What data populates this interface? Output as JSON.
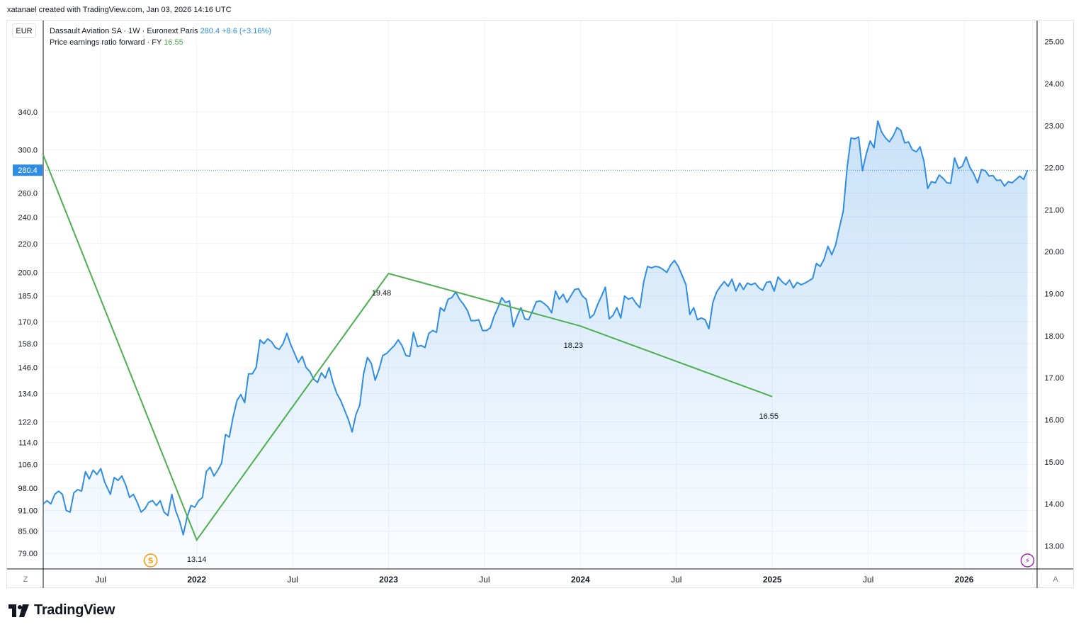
{
  "attribution": "xatanael created with TradingView.com, Jan 03, 2026 14:16 UTC",
  "currency": "EUR",
  "legend": {
    "symbol": "Dassault Aviation SA · 1W · Euronext Paris",
    "price": "280.4",
    "change": "+8.6 (+3.16%)",
    "indicator": "Price earnings ratio forward · FY",
    "indicator_value": "16.55"
  },
  "colors": {
    "price_line": "#2f8de4",
    "pe_line": "#4caf50",
    "grid": "#f0f3fa",
    "axis_text": "#131722"
  },
  "corner_left": "Z",
  "corner_right": "A",
  "logo_text": "TradingView",
  "chart_data": {
    "type": "line",
    "title": "Dassault Aviation SA · 1W · Euronext Paris",
    "xlabel": "",
    "ylabel": "",
    "x_tick_labels": [
      "Jul",
      "2022",
      "Jul",
      "2023",
      "Jul",
      "2024",
      "Jul",
      "2025",
      "Jul",
      "2026"
    ],
    "x_tick_dates": [
      2021.5,
      2022.0,
      2022.5,
      2023.0,
      2023.5,
      2024.0,
      2024.5,
      2025.0,
      2025.5,
      2026.0
    ],
    "x_range": [
      2021.2,
      2026.38
    ],
    "left_axis": {
      "scale": "log",
      "range": [
        75,
        460
      ],
      "ticks": [
        "79.00",
        "85.00",
        "91.00",
        "98.00",
        "106.0",
        "114.0",
        "122.0",
        "134.0",
        "146.0",
        "158.0",
        "170.0",
        "185.0",
        "200.0",
        "220.0",
        "240.0",
        "260.0",
        "300.0",
        "340.0"
      ],
      "last_price_label": "280.4",
      "last_price": 280.4
    },
    "right_axis": {
      "range": [
        12.45,
        25.5
      ],
      "ticks": [
        "13.00",
        "14.00",
        "15.00",
        "16.00",
        "17.00",
        "18.00",
        "19.00",
        "20.00",
        "21.00",
        "22.00",
        "23.00",
        "24.00",
        "25.00"
      ]
    },
    "series": [
      {
        "name": "Dassault Aviation SA price",
        "axis": "left",
        "type": "area",
        "points": [
          [
            2021.2,
            93
          ],
          [
            2021.22,
            94
          ],
          [
            2021.24,
            93
          ],
          [
            2021.26,
            96
          ],
          [
            2021.28,
            97
          ],
          [
            2021.3,
            96
          ],
          [
            2021.32,
            91
          ],
          [
            2021.34,
            90.5
          ],
          [
            2021.36,
            96.5
          ],
          [
            2021.38,
            97.5
          ],
          [
            2021.4,
            97
          ],
          [
            2021.42,
            103.5
          ],
          [
            2021.44,
            101
          ],
          [
            2021.46,
            104
          ],
          [
            2021.48,
            102.5
          ],
          [
            2021.5,
            104.5
          ],
          [
            2021.52,
            100
          ],
          [
            2021.55,
            96
          ],
          [
            2021.57,
            101.5
          ],
          [
            2021.59,
            100.5
          ],
          [
            2021.61,
            102
          ],
          [
            2021.63,
            99
          ],
          [
            2021.65,
            95
          ],
          [
            2021.67,
            96
          ],
          [
            2021.69,
            93.5
          ],
          [
            2021.71,
            90.5
          ],
          [
            2021.73,
            91.5
          ],
          [
            2021.75,
            93.5
          ],
          [
            2021.77,
            94
          ],
          [
            2021.79,
            92.5
          ],
          [
            2021.81,
            94
          ],
          [
            2021.83,
            90.5
          ],
          [
            2021.85,
            89.5
          ],
          [
            2021.87,
            96
          ],
          [
            2021.89,
            91
          ],
          [
            2021.91,
            88
          ],
          [
            2021.93,
            84
          ],
          [
            2021.95,
            89
          ],
          [
            2021.97,
            92.5
          ],
          [
            2021.99,
            92
          ],
          [
            2022.01,
            94
          ],
          [
            2022.03,
            95
          ],
          [
            2022.05,
            103.5
          ],
          [
            2022.07,
            105
          ],
          [
            2022.09,
            102
          ],
          [
            2022.11,
            104
          ],
          [
            2022.13,
            106.5
          ],
          [
            2022.15,
            117
          ],
          [
            2022.17,
            116
          ],
          [
            2022.19,
            124
          ],
          [
            2022.21,
            131
          ],
          [
            2022.23,
            133.5
          ],
          [
            2022.25,
            130
          ],
          [
            2022.27,
            143
          ],
          [
            2022.29,
            143
          ],
          [
            2022.31,
            146
          ],
          [
            2022.33,
            160
          ],
          [
            2022.35,
            158
          ],
          [
            2022.37,
            160.5
          ],
          [
            2022.39,
            159
          ],
          [
            2022.41,
            156
          ],
          [
            2022.43,
            155
          ],
          [
            2022.45,
            158
          ],
          [
            2022.47,
            163.5
          ],
          [
            2022.49,
            157.5
          ],
          [
            2022.51,
            153
          ],
          [
            2022.53,
            148.5
          ],
          [
            2022.55,
            151.5
          ],
          [
            2022.57,
            146
          ],
          [
            2022.59,
            144
          ],
          [
            2022.61,
            140.5
          ],
          [
            2022.63,
            139
          ],
          [
            2022.65,
            143.5
          ],
          [
            2022.67,
            141
          ],
          [
            2022.69,
            146
          ],
          [
            2022.71,
            139
          ],
          [
            2022.73,
            134
          ],
          [
            2022.75,
            131
          ],
          [
            2022.77,
            127
          ],
          [
            2022.79,
            123
          ],
          [
            2022.81,
            118
          ],
          [
            2022.83,
            125
          ],
          [
            2022.85,
            129
          ],
          [
            2022.87,
            143
          ],
          [
            2022.89,
            151
          ],
          [
            2022.91,
            148
          ],
          [
            2022.93,
            140
          ],
          [
            2022.95,
            145
          ],
          [
            2022.97,
            152
          ],
          [
            2022.99,
            153
          ],
          [
            2023.01,
            155
          ],
          [
            2023.03,
            157
          ],
          [
            2023.05,
            160
          ],
          [
            2023.07,
            157
          ],
          [
            2023.09,
            152
          ],
          [
            2023.11,
            151.5
          ],
          [
            2023.13,
            164
          ],
          [
            2023.15,
            156.5
          ],
          [
            2023.17,
            157
          ],
          [
            2023.19,
            156
          ],
          [
            2023.21,
            163.5
          ],
          [
            2023.23,
            165
          ],
          [
            2023.25,
            164
          ],
          [
            2023.27,
            178
          ],
          [
            2023.29,
            176
          ],
          [
            2023.31,
            183
          ],
          [
            2023.33,
            184
          ],
          [
            2023.35,
            187.5
          ],
          [
            2023.37,
            183
          ],
          [
            2023.39,
            180
          ],
          [
            2023.41,
            176.5
          ],
          [
            2023.43,
            170.5
          ],
          [
            2023.45,
            170.5
          ],
          [
            2023.47,
            171
          ],
          [
            2023.49,
            165
          ],
          [
            2023.51,
            165
          ],
          [
            2023.53,
            166.5
          ],
          [
            2023.55,
            173
          ],
          [
            2023.57,
            178
          ],
          [
            2023.59,
            184
          ],
          [
            2023.61,
            181
          ],
          [
            2023.63,
            182
          ],
          [
            2023.65,
            167
          ],
          [
            2023.67,
            173
          ],
          [
            2023.69,
            178
          ],
          [
            2023.71,
            171.5
          ],
          [
            2023.73,
            171
          ],
          [
            2023.75,
            176
          ],
          [
            2023.77,
            181.5
          ],
          [
            2023.79,
            182
          ],
          [
            2023.81,
            180.5
          ],
          [
            2023.83,
            178.5
          ],
          [
            2023.85,
            175
          ],
          [
            2023.87,
            188
          ],
          [
            2023.89,
            183
          ],
          [
            2023.91,
            186
          ],
          [
            2023.93,
            181
          ],
          [
            2023.95,
            185
          ],
          [
            2023.97,
            189
          ],
          [
            2023.99,
            189.5
          ],
          [
            2024.01,
            185
          ],
          [
            2024.03,
            183
          ],
          [
            2024.05,
            172
          ],
          [
            2024.07,
            174
          ],
          [
            2024.09,
            180
          ],
          [
            2024.11,
            185
          ],
          [
            2024.13,
            190.5
          ],
          [
            2024.15,
            171.5
          ],
          [
            2024.17,
            173.5
          ],
          [
            2024.19,
            178
          ],
          [
            2024.21,
            172
          ],
          [
            2024.23,
            185
          ],
          [
            2024.25,
            183
          ],
          [
            2024.27,
            184
          ],
          [
            2024.29,
            180.5
          ],
          [
            2024.31,
            178
          ],
          [
            2024.33,
            194
          ],
          [
            2024.35,
            204
          ],
          [
            2024.37,
            203
          ],
          [
            2024.39,
            204
          ],
          [
            2024.41,
            203.5
          ],
          [
            2024.43,
            202
          ],
          [
            2024.45,
            200
          ],
          [
            2024.47,
            205
          ],
          [
            2024.49,
            208
          ],
          [
            2024.51,
            204
          ],
          [
            2024.53,
            198
          ],
          [
            2024.55,
            192
          ],
          [
            2024.57,
            174
          ],
          [
            2024.59,
            178
          ],
          [
            2024.61,
            171
          ],
          [
            2024.63,
            172
          ],
          [
            2024.65,
            171
          ],
          [
            2024.67,
            166
          ],
          [
            2024.69,
            181
          ],
          [
            2024.71,
            187.5
          ],
          [
            2024.73,
            191
          ],
          [
            2024.75,
            194
          ],
          [
            2024.77,
            191
          ],
          [
            2024.79,
            195.5
          ],
          [
            2024.81,
            188
          ],
          [
            2024.83,
            193
          ],
          [
            2024.85,
            189
          ],
          [
            2024.87,
            193
          ],
          [
            2024.89,
            192
          ],
          [
            2024.91,
            193
          ],
          [
            2024.93,
            190
          ],
          [
            2024.95,
            188.5
          ],
          [
            2024.97,
            193.5
          ],
          [
            2024.99,
            194
          ],
          [
            2025.01,
            188
          ],
          [
            2025.03,
            197
          ],
          [
            2025.05,
            194
          ],
          [
            2025.07,
            192
          ],
          [
            2025.09,
            195
          ],
          [
            2025.11,
            190
          ],
          [
            2025.13,
            193.5
          ],
          [
            2025.15,
            192
          ],
          [
            2025.17,
            193
          ],
          [
            2025.19,
            194.5
          ],
          [
            2025.21,
            196
          ],
          [
            2025.23,
            206
          ],
          [
            2025.25,
            204
          ],
          [
            2025.27,
            209
          ],
          [
            2025.29,
            218
          ],
          [
            2025.31,
            212
          ],
          [
            2025.33,
            219
          ],
          [
            2025.35,
            232
          ],
          [
            2025.37,
            245
          ],
          [
            2025.39,
            283
          ],
          [
            2025.41,
            312
          ],
          [
            2025.43,
            311
          ],
          [
            2025.45,
            313
          ],
          [
            2025.47,
            280
          ],
          [
            2025.49,
            296
          ],
          [
            2025.51,
            309
          ],
          [
            2025.53,
            302
          ],
          [
            2025.55,
            330
          ],
          [
            2025.57,
            318
          ],
          [
            2025.59,
            312
          ],
          [
            2025.61,
            308
          ],
          [
            2025.63,
            314
          ],
          [
            2025.65,
            323
          ],
          [
            2025.67,
            320
          ],
          [
            2025.69,
            307
          ],
          [
            2025.71,
            308
          ],
          [
            2025.73,
            300
          ],
          [
            2025.75,
            298
          ],
          [
            2025.77,
            303
          ],
          [
            2025.79,
            289
          ],
          [
            2025.81,
            264
          ],
          [
            2025.83,
            270
          ],
          [
            2025.85,
            269
          ],
          [
            2025.87,
            276
          ],
          [
            2025.89,
            273
          ],
          [
            2025.91,
            269
          ],
          [
            2025.93,
            268.5
          ],
          [
            2025.95,
            292
          ],
          [
            2025.97,
            282
          ],
          [
            2025.99,
            284
          ],
          [
            2026.01,
            293
          ],
          [
            2026.03,
            283
          ],
          [
            2026.05,
            277
          ],
          [
            2026.07,
            269
          ],
          [
            2026.09,
            281
          ],
          [
            2026.11,
            280
          ],
          [
            2026.13,
            275
          ],
          [
            2026.15,
            275.5
          ],
          [
            2026.17,
            271
          ],
          [
            2026.19,
            271.5
          ],
          [
            2026.21,
            266
          ],
          [
            2026.23,
            270
          ],
          [
            2026.25,
            269
          ],
          [
            2026.27,
            272
          ],
          [
            2026.29,
            275
          ],
          [
            2026.31,
            272
          ],
          [
            2026.33,
            280.4
          ]
        ]
      },
      {
        "name": "Price earnings ratio forward · FY",
        "axis": "right",
        "type": "line",
        "points": [
          [
            2021.2,
            22.3
          ],
          [
            2022.0,
            13.14
          ],
          [
            2023.0,
            19.48
          ],
          [
            2024.0,
            18.23
          ],
          [
            2025.0,
            16.55
          ]
        ],
        "labels": [
          {
            "x": 2022.0,
            "text": "13.14"
          },
          {
            "x": 2023.0,
            "text": "19.48"
          },
          {
            "x": 2024.0,
            "text": "18.23"
          },
          {
            "x": 2025.0,
            "text": "16.55"
          }
        ]
      }
    ],
    "markers": [
      {
        "type": "split",
        "x": 2021.76,
        "label": "S",
        "color": "#ff9800"
      },
      {
        "type": "event",
        "x": 2026.33,
        "label": "⚡",
        "color": "#9c27b0"
      }
    ]
  }
}
